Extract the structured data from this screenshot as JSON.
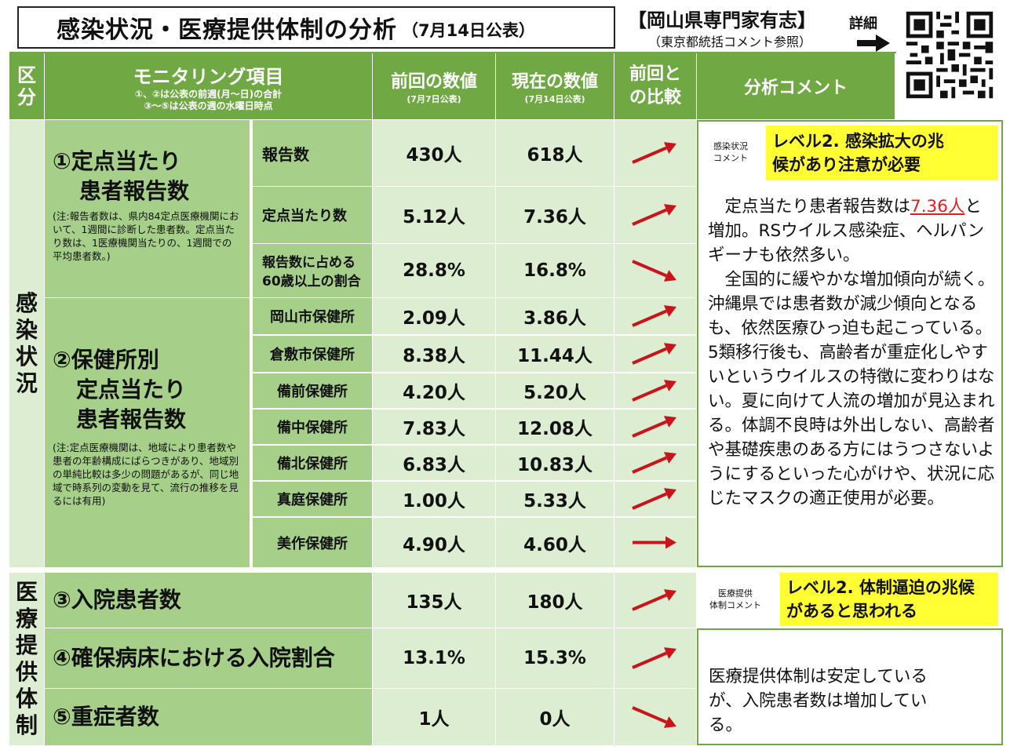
{
  "header": {
    "title": "感染状況・医療提供体制の分析",
    "date": "（7月14日公表）",
    "expert_title": "【岡山県専門家有志】",
    "expert_sub": "（東京都統括コメント参照）",
    "detail_label": "詳細"
  },
  "table_header": {
    "category": "区分",
    "monitoring": "モニタリング項目",
    "monitoring_note1": "①、②は公表の前週(月～日)の合計",
    "monitoring_note2": "③～⑤は公表の週の水曜日時点",
    "prev": "前回の数値",
    "prev_date": "(7月7日公表)",
    "curr": "現在の数値",
    "curr_date": "(7月14日公表)",
    "compare": "前回と\nの比較",
    "compare_l1": "前回と",
    "compare_l2": "の比較",
    "comment": "分析コメント"
  },
  "sections": {
    "infection": "感染状況",
    "medical": "医療提供体制"
  },
  "item1": {
    "title_l1": "①定点当たり",
    "title_l2": "患者報告数",
    "note": "(注:報告者数は、県内84定点医療機関において、1週間に診断した患者数。定点当たり数は、1医療機関当たりの、1週間での平均患者数。)",
    "rows": [
      {
        "label": "報告数",
        "prev": "430人",
        "curr": "618人",
        "trend": "up"
      },
      {
        "label": "定点当たり数",
        "prev": "5.12人",
        "curr": "7.36人",
        "trend": "up"
      },
      {
        "label_l1": "報告数に占める",
        "label_l2": "60歳以上の割合",
        "prev": "28.8%",
        "curr": "16.8%",
        "trend": "down"
      }
    ]
  },
  "item2": {
    "title_l1": "②保健所別",
    "title_l2": "定点当たり",
    "title_l3": "患者報告数",
    "note": "(注:定点医療機関は、地域により患者数や患者の年齢構成にばらつきがあり、地域別の単純比較は多少の問題があるが、同じ地域で時系列の変動を見て、流行の推移を見るには有用)",
    "rows": [
      {
        "label": "岡山市保健所",
        "prev": "2.09人",
        "curr": "3.86人",
        "trend": "up"
      },
      {
        "label": "倉敷市保健所",
        "prev": "8.38人",
        "curr": "11.44人",
        "trend": "up"
      },
      {
        "label": "備前保健所",
        "prev": "4.20人",
        "curr": "5.20人",
        "trend": "up"
      },
      {
        "label": "備中保健所",
        "prev": "7.83人",
        "curr": "12.08人",
        "trend": "up"
      },
      {
        "label": "備北保健所",
        "prev": "6.83人",
        "curr": "10.83人",
        "trend": "up"
      },
      {
        "label": "真庭保健所",
        "prev": "1.00人",
        "curr": "5.33人",
        "trend": "up"
      },
      {
        "label": "美作保健所",
        "prev": "4.90人",
        "curr": "4.60人",
        "trend": "flat"
      }
    ]
  },
  "item3": {
    "title": "③入院患者数",
    "prev": "135人",
    "curr": "180人",
    "trend": "up"
  },
  "item4": {
    "title": "④確保病床における入院割合",
    "prev": "13.1%",
    "curr": "15.3%",
    "trend": "up"
  },
  "item5": {
    "title": "⑤重症者数",
    "prev": "1人",
    "curr": "0人",
    "trend": "down"
  },
  "infection_comment": {
    "label_l1": "感染状況",
    "label_l2": "コメント",
    "level_l1": "レベル2. 感染拡大の兆",
    "level_l2": "候があり注意が必要",
    "p1_pre": "　定点当たり患者報告数は",
    "p1_hl1": "7.36",
    "p1_hl2": "人",
    "p1_post": "と増加。RSウイルス感染症、ヘルパンギーナも依然多い。",
    "p2": "　全国的に緩やかな増加傾向が続く。沖縄県では患者数が減少傾向となるも、依然医療ひっ迫も起こっている。5類移行後も、高齢者が重症化しやすいというウイルスの特徴に変わりはない。夏に向けて人流の増加が見込まれる。体調不良時は外出しない、高齢者や基礎疾患のある方にはうつさないようにするといった心がけや、状況に応じたマスクの適正使用が必要。"
  },
  "medical_comment": {
    "label_l1": "医療提供",
    "label_l2": "体制コメント",
    "level_l1": "レベル2. 体制逼迫の兆候",
    "level_l2": "があると思われる",
    "text": "医療提供体制は安定しているが、入院患者数は増加している。"
  },
  "colors": {
    "header_green": "#70a844",
    "row_green": "#a6cf8a",
    "value_bg": "#dcedd1",
    "level_yellow": "#ffff33",
    "arrow_red": "#c8151b",
    "highlight_red": "#e0201c"
  }
}
